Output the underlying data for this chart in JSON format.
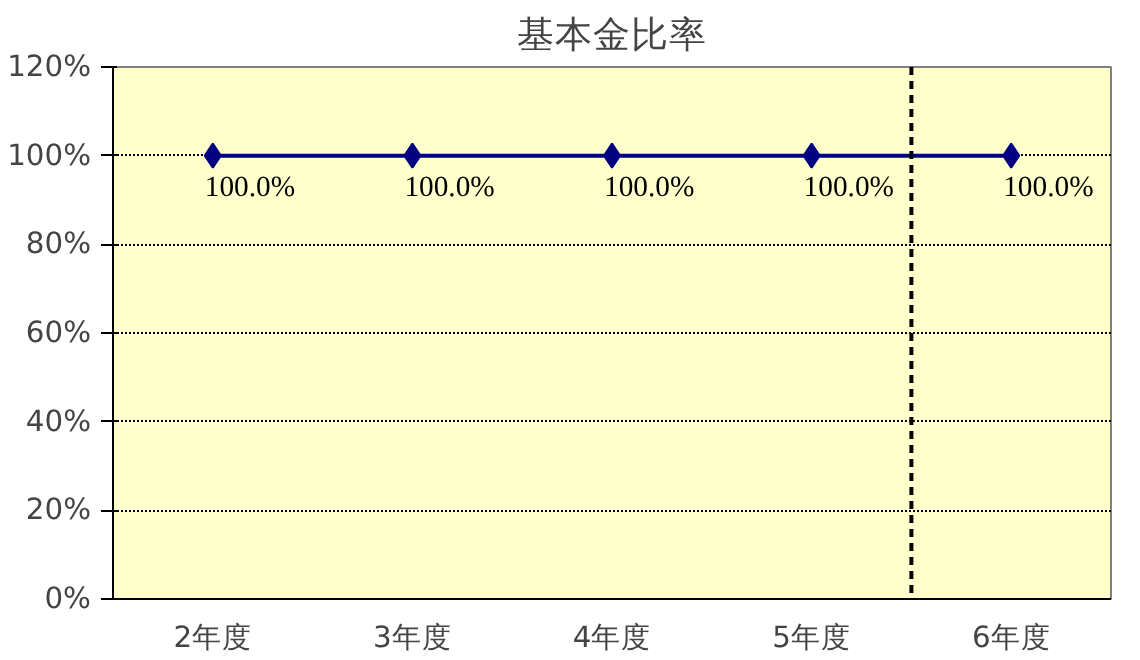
{
  "chart_data": {
    "type": "line",
    "title": "基本金比率",
    "x": [
      2,
      3,
      4,
      5,
      6
    ],
    "xlim": [
      1.5,
      6.5
    ],
    "xticks": [
      {
        "value": 2,
        "label": "2年度"
      },
      {
        "value": 3,
        "label": "3年度"
      },
      {
        "value": 4,
        "label": "4年度"
      },
      {
        "value": 5,
        "label": "5年度"
      },
      {
        "value": 6,
        "label": "6年度"
      }
    ],
    "series": [
      {
        "color": "#000080",
        "values": [
          100,
          100,
          100,
          100,
          100
        ],
        "value_labels": [
          "100.0%",
          "100.0%",
          "100.0%",
          "100.0%",
          "100.0%"
        ]
      }
    ],
    "ylim": [
      0,
      120
    ],
    "yticks": [
      {
        "value": 0,
        "label": "0%"
      },
      {
        "value": 20,
        "label": "20%"
      },
      {
        "value": 40,
        "label": "40%"
      },
      {
        "value": 60,
        "label": "60%"
      },
      {
        "value": 80,
        "label": "80%"
      },
      {
        "value": 100,
        "label": "100%"
      },
      {
        "value": 120,
        "label": "120%"
      }
    ],
    "grid": "y",
    "marker": "diamond",
    "line_style": "solid",
    "ref_lines": [
      {
        "axis": "x",
        "value": 5.5,
        "color": "#000000",
        "line_style": "dashed"
      }
    ]
  }
}
